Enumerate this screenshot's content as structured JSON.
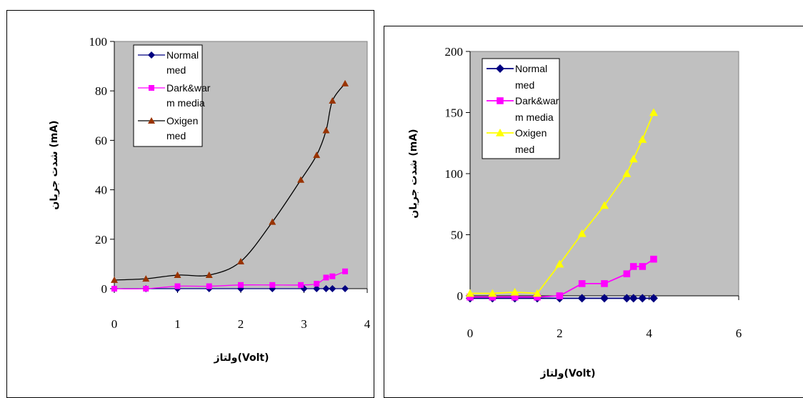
{
  "chart_data": [
    {
      "type": "line",
      "title": "",
      "xlabel": "ولتاژ(Volt)",
      "ylabel": "شدت جریان (mA)",
      "xlim": [
        0,
        4
      ],
      "ylim": [
        0,
        100
      ],
      "x_ticks": [
        "0",
        "1",
        "2",
        "3",
        "4"
      ],
      "y_ticks": [
        "0",
        "20",
        "40",
        "60",
        "80",
        "100"
      ],
      "plot_background": "#c0c0c0",
      "legend_position": "top-left",
      "series": [
        {
          "name_lines": [
            "Normal",
            "med"
          ],
          "color": "#000080",
          "marker": "diamond",
          "smooth": true,
          "x": [
            0,
            0.5,
            1,
            1.5,
            2,
            2.5,
            3,
            3.2,
            3.35,
            3.45,
            3.65
          ],
          "y": [
            0,
            0,
            0,
            0,
            0,
            0,
            0,
            0,
            0,
            0,
            0
          ]
        },
        {
          "name_lines": [
            "Dark&war",
            "m media"
          ],
          "color": "#ff00ff",
          "marker": "square",
          "smooth": true,
          "x": [
            0,
            0.5,
            1,
            1.5,
            2,
            2.5,
            2.95,
            3.2,
            3.35,
            3.45,
            3.65
          ],
          "y": [
            0,
            0,
            1,
            1,
            1.5,
            1.5,
            1.5,
            2,
            4.5,
            5,
            7
          ]
        },
        {
          "name_lines": [
            "Oxigen",
            "med"
          ],
          "color": "#993300",
          "line_color": "#000000",
          "marker": "triangle",
          "smooth": true,
          "x": [
            0,
            0.5,
            1,
            1.5,
            2,
            2.5,
            2.95,
            3.2,
            3.35,
            3.45,
            3.65
          ],
          "y": [
            3.5,
            4,
            5.5,
            5.5,
            11,
            27,
            44,
            54,
            64,
            76,
            83
          ]
        }
      ]
    },
    {
      "type": "line",
      "title": "",
      "xlabel": "ولتاژ(Volt)",
      "ylabel": "شدت جریان (mA)",
      "xlim": [
        0,
        6
      ],
      "ylim": [
        0,
        200
      ],
      "x_ticks": [
        "0",
        "2",
        "4",
        "6"
      ],
      "y_ticks": [
        "0",
        "50",
        "100",
        "150",
        "200"
      ],
      "plot_background": "#c0c0c0",
      "legend_position": "top-left",
      "series": [
        {
          "name_lines": [
            "Normal",
            "med"
          ],
          "color": "#000080",
          "marker": "diamond",
          "smooth": false,
          "x": [
            0,
            0.5,
            1,
            1.5,
            2,
            2.5,
            3,
            3.5,
            3.65,
            3.85,
            4.1
          ],
          "y": [
            -2,
            -2,
            -2,
            -2,
            -2,
            -2,
            -2,
            -2,
            -2,
            -2,
            -2
          ]
        },
        {
          "name_lines": [
            "Dark&war",
            "m media"
          ],
          "color": "#ff00ff",
          "marker": "square",
          "smooth": false,
          "x": [
            0,
            0.5,
            1,
            1.5,
            2,
            2.5,
            3,
            3.5,
            3.65,
            3.85,
            4.1
          ],
          "y": [
            -1,
            -1,
            -1,
            -1,
            0,
            10,
            10,
            18,
            24,
            24,
            30
          ]
        },
        {
          "name_lines": [
            "Oxigen",
            "med"
          ],
          "color": "#ffff00",
          "marker": "triangle",
          "smooth": false,
          "x": [
            0,
            0.5,
            1,
            1.5,
            2,
            2.5,
            3,
            3.5,
            3.65,
            3.85,
            4.1
          ],
          "y": [
            2,
            2,
            3,
            2,
            26,
            51,
            74,
            100,
            112,
            128,
            150
          ]
        }
      ]
    }
  ]
}
